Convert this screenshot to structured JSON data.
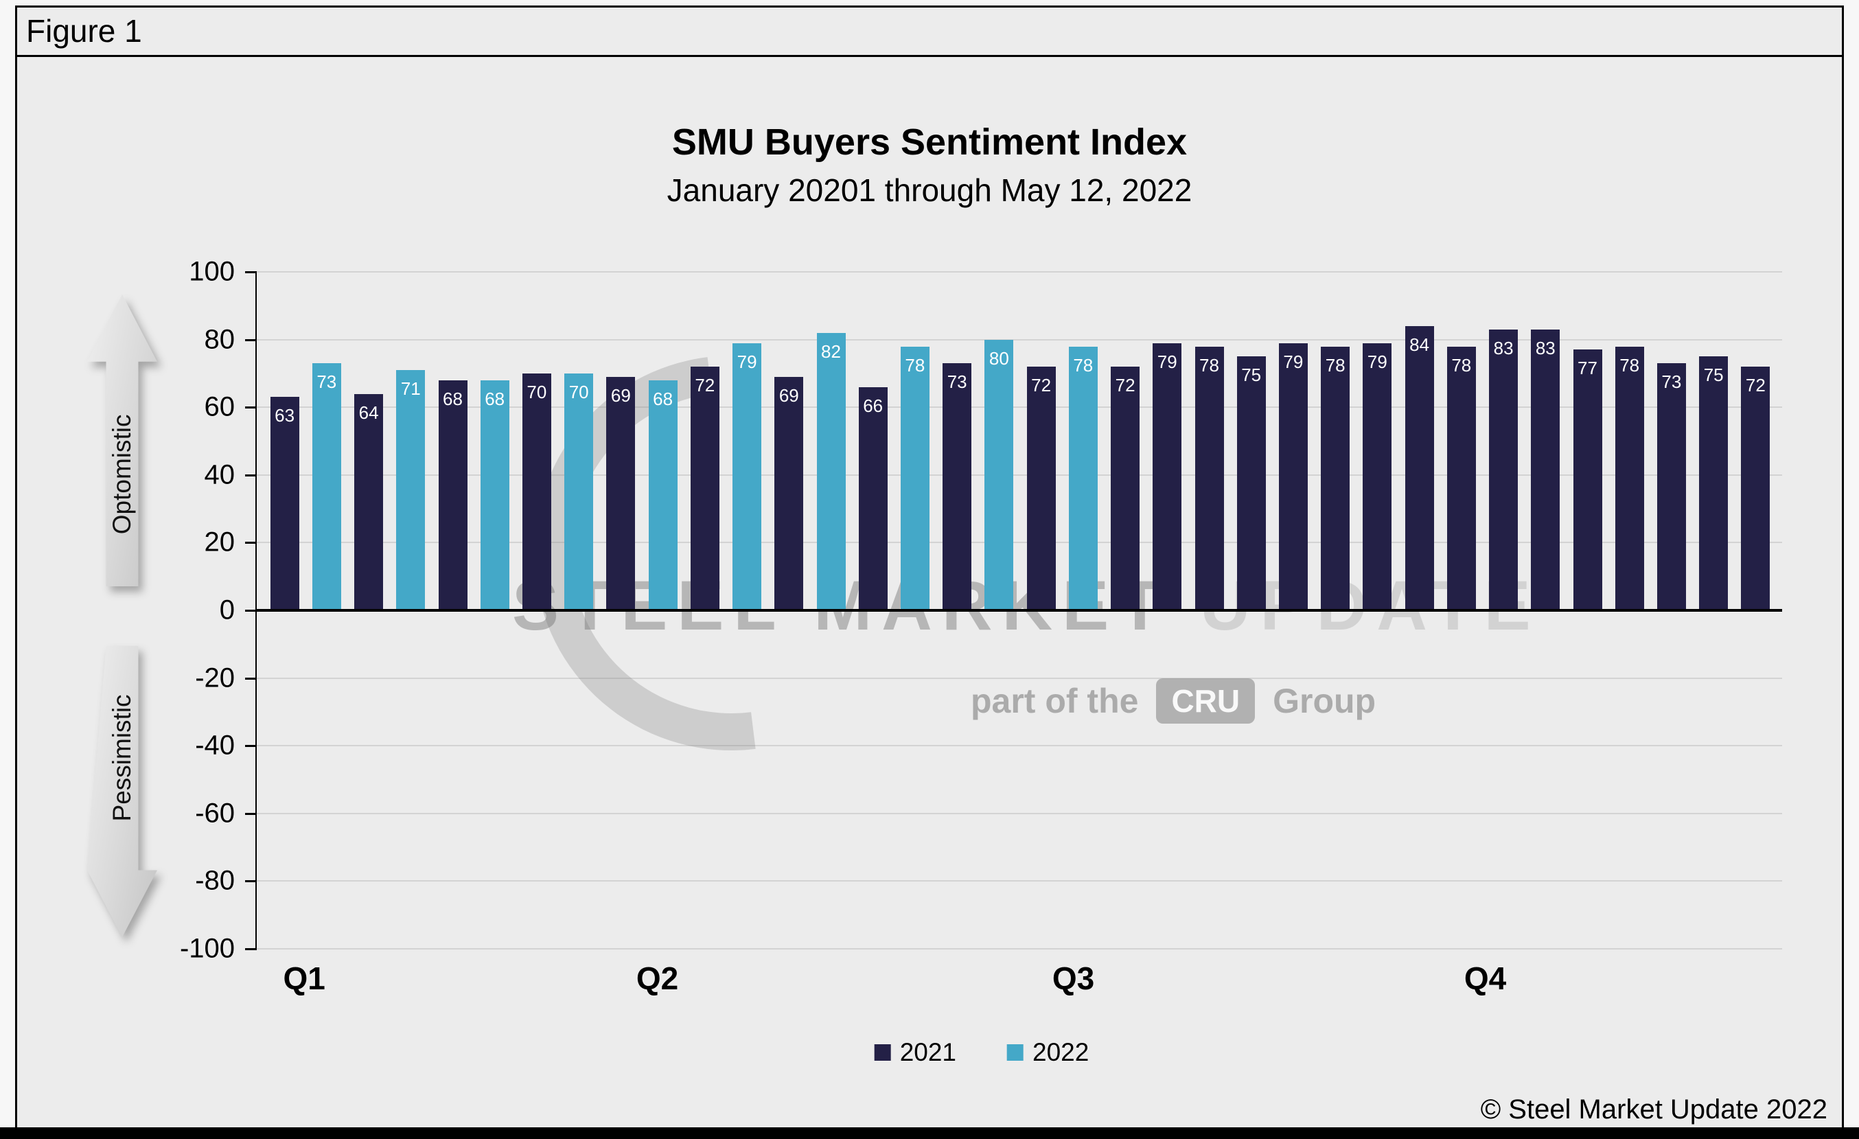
{
  "figure_label": "Figure 1",
  "chart_data": {
    "type": "bar",
    "title": "SMU Buyers Sentiment Index",
    "subtitle": "January 20201 through May 12, 2022",
    "ylim": [
      -100,
      100
    ],
    "ytick_step": 20,
    "grid": true,
    "legend_position": "bottom",
    "quarter_labels": [
      "Q1",
      "Q2",
      "Q3",
      "Q4"
    ],
    "quarter_slot_centers": [
      0.5,
      8.9,
      18.8,
      28.6
    ],
    "axis_annotations": {
      "positive": "Optomistic",
      "negative": "Pessimistic"
    },
    "series": [
      {
        "name": "2021",
        "color": "#232046",
        "values": [
          63,
          64,
          68,
          70,
          69,
          72,
          69,
          66,
          73,
          72,
          72,
          79,
          78,
          75,
          79,
          78,
          79,
          84,
          78,
          83,
          83,
          77,
          78,
          73,
          75,
          72
        ]
      },
      {
        "name": "2022",
        "color": "#44a8c8",
        "values": [
          73,
          71,
          68,
          70,
          68,
          79,
          82,
          78,
          80,
          78
        ]
      }
    ]
  },
  "watermark": {
    "title_dark": "STEEL MARKET ",
    "title_light": "UPDATE",
    "tagline_prefix": "part of the",
    "tagline_logo": "CRU",
    "tagline_suffix": "Group"
  },
  "copyright": "© Steel Market Update 2022"
}
